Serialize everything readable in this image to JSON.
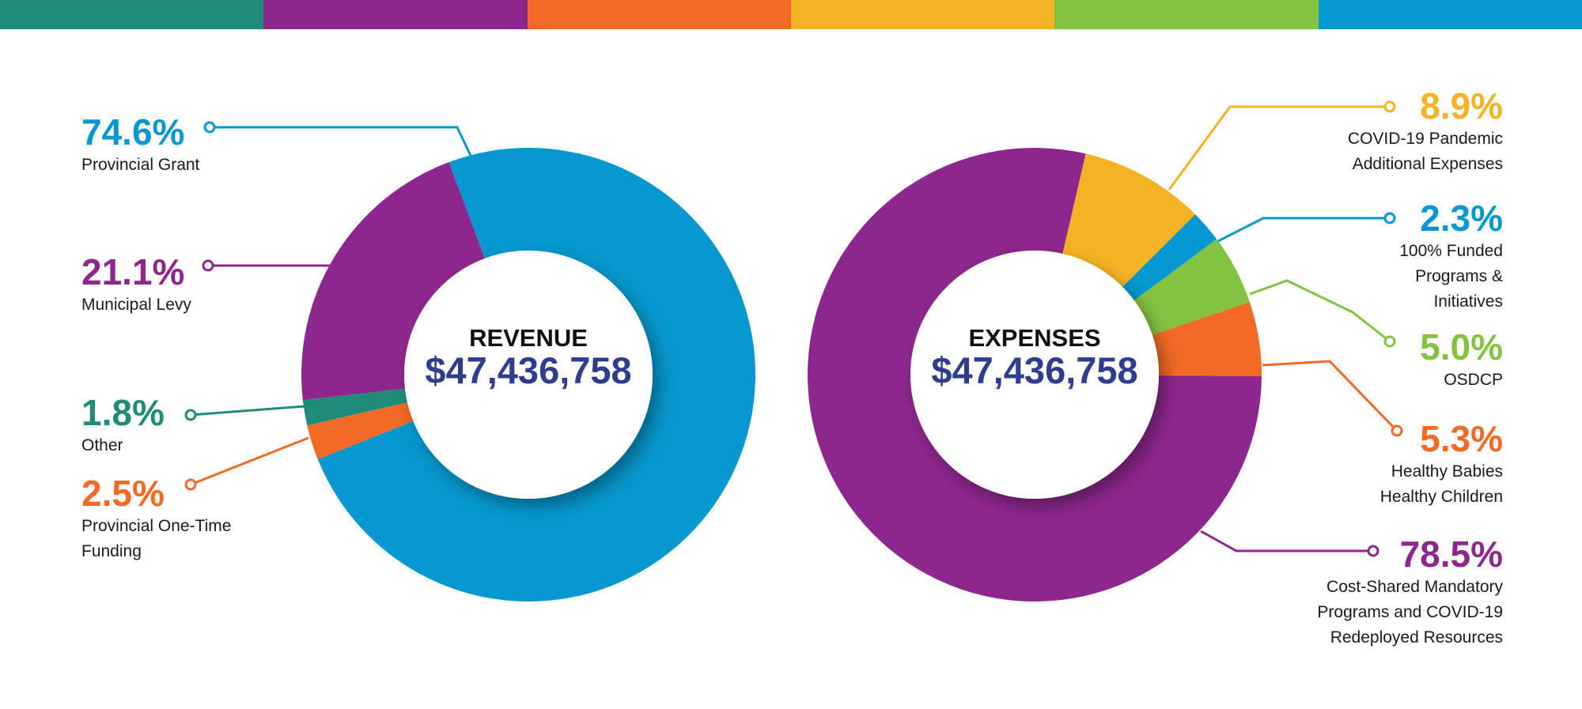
{
  "top_bar_colors": [
    "#1f8c7a",
    "#8e278d",
    "#f26a25",
    "#f3b324",
    "#83c341",
    "#0698ce"
  ],
  "chart_data": [
    {
      "type": "pie",
      "variant": "donut",
      "center_title": "REVENUE",
      "center_value": "$47,436,758",
      "segments": [
        {
          "label": "Provincial Grant",
          "value": 74.6,
          "display": "74.6%",
          "color": "#0698ce"
        },
        {
          "label": "Provincial One-Time Funding",
          "value": 2.5,
          "display": "2.5%",
          "color": "#f26a25"
        },
        {
          "label": "Other",
          "value": 1.8,
          "display": "1.8%",
          "color": "#1f8c7a"
        },
        {
          "label": "Municipal Levy",
          "value": 21.1,
          "display": "21.1%",
          "color": "#8e278d"
        }
      ]
    },
    {
      "type": "pie",
      "variant": "donut",
      "center_title": "EXPENSES",
      "center_value": "$47,436,758",
      "segments": [
        {
          "label": "COVID-19 Pandemic Additional Expenses",
          "value": 8.9,
          "display": "8.9%",
          "color": "#f3b324"
        },
        {
          "label": "100% Funded Programs & Initiatives",
          "value": 2.3,
          "display": "2.3%",
          "color": "#0698ce"
        },
        {
          "label": "OSDCP",
          "value": 5.0,
          "display": "5.0%",
          "color": "#83c341"
        },
        {
          "label": "Healthy Babies Healthy Children",
          "value": 5.3,
          "display": "5.3%",
          "color": "#f26a25"
        },
        {
          "label": "Cost-Shared Mandatory Programs and COVID-19 Redeployed Resources",
          "value": 78.5,
          "display": "78.5%",
          "color": "#8e278d"
        }
      ]
    }
  ]
}
